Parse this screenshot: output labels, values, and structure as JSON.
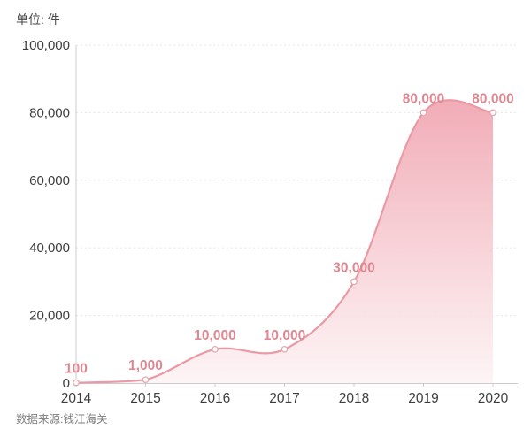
{
  "header": {
    "unit_label": "单位: 件"
  },
  "footer": {
    "source_label": "数据来源:钱江海关"
  },
  "chart_data": {
    "type": "area",
    "title": "",
    "xlabel": "",
    "ylabel": "单位: 件",
    "categories": [
      "2014",
      "2015",
      "2016",
      "2017",
      "2018",
      "2019",
      "2020"
    ],
    "values": [
      100,
      1000,
      10000,
      10000,
      30000,
      80000,
      80000
    ],
    "point_labels": [
      "100",
      "1,000",
      "10,000",
      "10,000",
      "30,000",
      "80,000",
      "80,000"
    ],
    "y_ticks": [
      0,
      20000,
      40000,
      60000,
      80000,
      100000
    ],
    "y_tick_labels": [
      "0",
      "20,000",
      "40,000",
      "60,000",
      "80,000",
      "100,000"
    ],
    "ylim": [
      0,
      100000
    ],
    "grid": "dotted-horizontal",
    "legend": "none",
    "source": "数据来源:钱江海关",
    "colors": {
      "line": "#eb9aa5",
      "area_top": "#f0a4b0",
      "area_bottom": "#fdf4f5",
      "marker_fill": "#ffffff",
      "marker_stroke": "#e5aab3",
      "point_label": "#dd8893",
      "axis_line": "#cccccc",
      "axis_text": "#3d3d3d",
      "grid_line": "#e5e5e5",
      "source_text": "#7e7e7e"
    }
  }
}
